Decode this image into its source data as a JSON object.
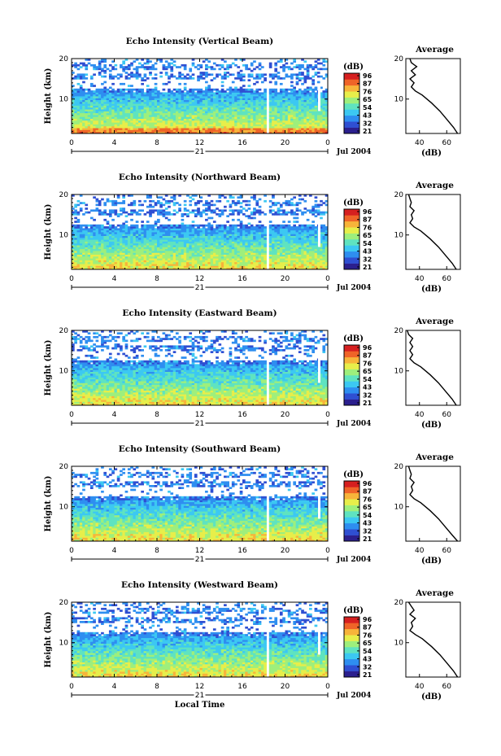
{
  "figure": {
    "date_label": "Jul 2004",
    "day_label": "21",
    "xlabel": "Local Time",
    "colorbar_unit": "(dB)",
    "colorbar_ticks": [
      "96",
      "87",
      "76",
      "65",
      "54",
      "43",
      "32",
      "21"
    ],
    "colormap": [
      "#2b1f8e",
      "#2f4fd2",
      "#2e8ef0",
      "#3cc8f2",
      "#5fe3c0",
      "#9eef7c",
      "#e7ee4a",
      "#f7b43a",
      "#ef6428",
      "#d61f1f"
    ]
  },
  "chart_data": [
    {
      "type": "heatmap",
      "panel": "vertical",
      "title": "Echo Intensity (Vertical Beam)",
      "xlabel": "",
      "ylabel": "Height (km)",
      "xlim": [
        0,
        24
      ],
      "ylim": [
        1.5,
        20
      ],
      "xticks": [
        "0",
        "4",
        "8",
        "12",
        "16",
        "20",
        "0"
      ],
      "yticks": [
        "10",
        "20"
      ],
      "color_range_db": [
        21,
        96
      ],
      "data_gap_local_time": [
        18.2,
        18.5
      ],
      "profile": {
        "title": "Average",
        "xlabel": "(dB)",
        "xticks": [
          "40",
          "60"
        ],
        "yticks": [
          "10",
          "20"
        ],
        "xlim": [
          30,
          70
        ],
        "ylim": [
          1.5,
          20
        ],
        "height_km": [
          1.5,
          3,
          5,
          7,
          9,
          11,
          12,
          13,
          14,
          15,
          16,
          17,
          18,
          19,
          20
        ],
        "mean_db": [
          68,
          65,
          60,
          55,
          49,
          42,
          37,
          34,
          36,
          33,
          37,
          34,
          38,
          34,
          33
        ]
      }
    },
    {
      "type": "heatmap",
      "panel": "northward",
      "title": "Echo Intensity (Northward Beam)",
      "xlabel": "",
      "ylabel": "Height (km)",
      "xlim": [
        0,
        24
      ],
      "ylim": [
        1.5,
        20
      ],
      "xticks": [
        "0",
        "4",
        "8",
        "12",
        "16",
        "20",
        "0"
      ],
      "yticks": [
        "10",
        "20"
      ],
      "color_range_db": [
        21,
        96
      ],
      "data_gap_local_time": [
        18.2,
        18.5
      ],
      "profile": {
        "title": "Average",
        "xlabel": "(dB)",
        "xticks": [
          "40",
          "60"
        ],
        "yticks": [
          "10",
          "20"
        ],
        "xlim": [
          30,
          70
        ],
        "ylim": [
          1.5,
          20
        ],
        "height_km": [
          1.5,
          3,
          5,
          7,
          9,
          11,
          12,
          13,
          14,
          15,
          16,
          17,
          18,
          19,
          20
        ],
        "mean_db": [
          67,
          64,
          59,
          54,
          48,
          41,
          36,
          33,
          35,
          34,
          36,
          33,
          34,
          33,
          32
        ]
      }
    },
    {
      "type": "heatmap",
      "panel": "eastward",
      "title": "Echo Intensity (Eastward Beam)",
      "xlabel": "",
      "ylabel": "Height (km)",
      "xlim": [
        0,
        24
      ],
      "ylim": [
        1.5,
        20
      ],
      "xticks": [
        "0",
        "4",
        "8",
        "12",
        "16",
        "20",
        "0"
      ],
      "yticks": [
        "10",
        "20"
      ],
      "color_range_db": [
        21,
        96
      ],
      "data_gap_local_time": [
        18.2,
        18.5
      ],
      "profile": {
        "title": "Average",
        "xlabel": "(dB)",
        "xticks": [
          "40",
          "60"
        ],
        "yticks": [
          "10",
          "20"
        ],
        "xlim": [
          30,
          70
        ],
        "ylim": [
          1.5,
          20
        ],
        "height_km": [
          1.5,
          3,
          5,
          7,
          9,
          11,
          12,
          13,
          14,
          15,
          16,
          17,
          18,
          19,
          20
        ],
        "mean_db": [
          67,
          64,
          59,
          54,
          48,
          41,
          36,
          33,
          35,
          33,
          35,
          33,
          35,
          32,
          31
        ]
      }
    },
    {
      "type": "heatmap",
      "panel": "southward",
      "title": "Echo Intensity (Southward Beam)",
      "xlabel": "",
      "ylabel": "Height (km)",
      "xlim": [
        0,
        24
      ],
      "ylim": [
        1.5,
        20
      ],
      "xticks": [
        "0",
        "4",
        "8",
        "12",
        "16",
        "20",
        "0"
      ],
      "yticks": [
        "10",
        "20"
      ],
      "color_range_db": [
        21,
        96
      ],
      "data_gap_local_time": [
        18.2,
        18.5
      ],
      "profile": {
        "title": "Average",
        "xlabel": "(dB)",
        "xticks": [
          "40",
          "60"
        ],
        "yticks": [
          "10",
          "20"
        ],
        "xlim": [
          30,
          70
        ],
        "ylim": [
          1.5,
          20
        ],
        "height_km": [
          1.5,
          3,
          5,
          7,
          9,
          11,
          12,
          13,
          14,
          15,
          16,
          17,
          18,
          19,
          20
        ],
        "mean_db": [
          68,
          64,
          59,
          54,
          48,
          41,
          36,
          33,
          35,
          34,
          36,
          33,
          34,
          33,
          32
        ]
      }
    },
    {
      "type": "heatmap",
      "panel": "westward",
      "title": "Echo Intensity (Westward Beam)",
      "xlabel": "Local Time",
      "ylabel": "Height (km)",
      "xlim": [
        0,
        24
      ],
      "ylim": [
        1.5,
        20
      ],
      "xticks": [
        "0",
        "4",
        "8",
        "12",
        "16",
        "20",
        "0"
      ],
      "yticks": [
        "10",
        "20"
      ],
      "color_range_db": [
        21,
        96
      ],
      "data_gap_local_time": [
        18.2,
        18.5
      ],
      "profile": {
        "title": "Average",
        "xlabel": "(dB)",
        "xticks": [
          "40",
          "60"
        ],
        "yticks": [
          "10",
          "20"
        ],
        "xlim": [
          30,
          70
        ],
        "ylim": [
          1.5,
          20
        ],
        "height_km": [
          1.5,
          3,
          5,
          7,
          9,
          11,
          12,
          13,
          14,
          15,
          16,
          17,
          18,
          19,
          20
        ],
        "mean_db": [
          68,
          65,
          60,
          55,
          49,
          42,
          37,
          33,
          35,
          34,
          37,
          33,
          36,
          34,
          32
        ]
      }
    }
  ]
}
